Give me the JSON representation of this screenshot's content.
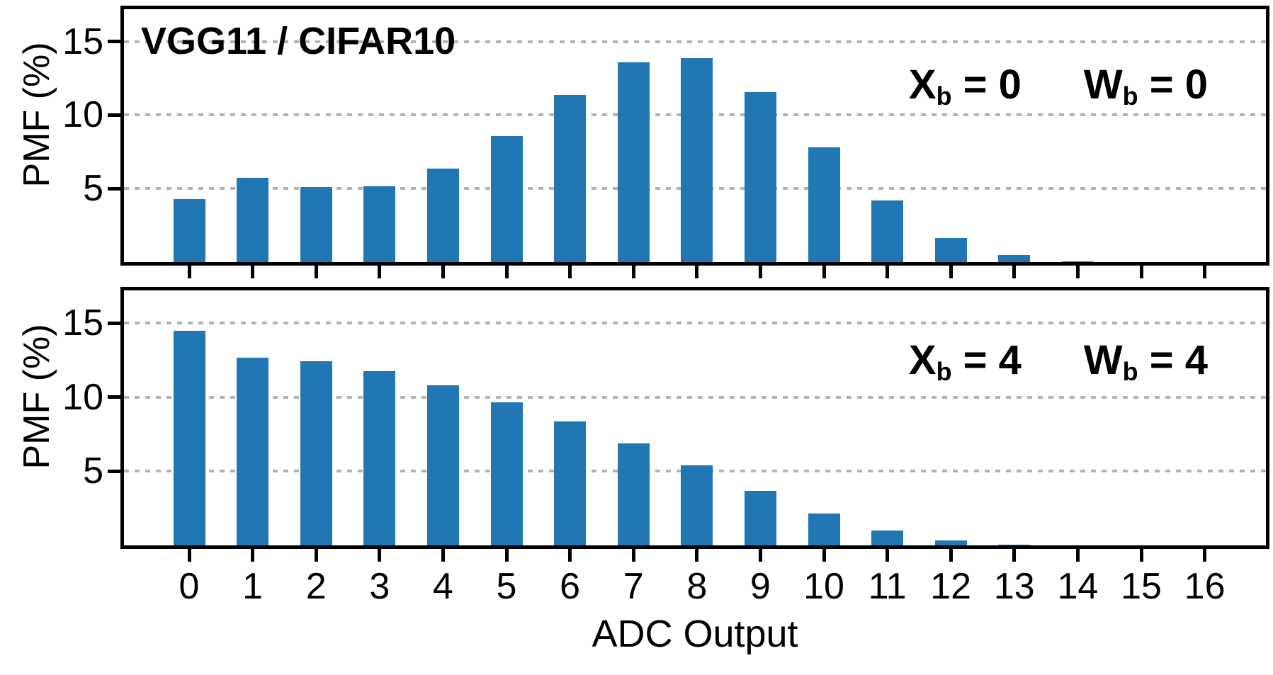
{
  "figure": {
    "kind": "two-panel bar chart",
    "bar_color": "#2077b4",
    "gridline_color": "#b3b3b3",
    "axis_color": "#000000"
  },
  "labels": {
    "ylabel": "PMF (%)",
    "xlabel": "ADC Output"
  },
  "chart_data": [
    {
      "type": "bar",
      "panel": "top",
      "title": "VGG11 / CIFAR10",
      "annotation": "Xb = 0   Wb = 0",
      "annotation_parts": {
        "var1": "X",
        "sub1": "b",
        "eq1": " = 0",
        "var2": "W",
        "sub2": "b",
        "eq2": " = 0"
      },
      "xlabel": "",
      "ylabel": "PMF (%)",
      "categories": [
        "0",
        "1",
        "2",
        "3",
        "4",
        "5",
        "6",
        "7",
        "8",
        "9",
        "10",
        "11",
        "12",
        "13",
        "14",
        "15",
        "16"
      ],
      "values": [
        4.3,
        5.75,
        5.1,
        5.15,
        6.35,
        8.6,
        11.35,
        13.6,
        13.9,
        11.55,
        7.8,
        4.2,
        1.65,
        0.5,
        0.05,
        0,
        0
      ],
      "yticks": [
        5,
        10,
        15
      ],
      "ylim": [
        0,
        17.2
      ],
      "grid": "dotted horizontal at yticks",
      "legend": "none"
    },
    {
      "type": "bar",
      "panel": "bottom",
      "title": "",
      "annotation": "Xb = 4   Wb = 4",
      "annotation_parts": {
        "var1": "X",
        "sub1": "b",
        "eq1": " = 4",
        "var2": "W",
        "sub2": "b",
        "eq2": " = 4"
      },
      "xlabel": "ADC Output",
      "ylabel": "PMF (%)",
      "categories": [
        "0",
        "1",
        "2",
        "3",
        "4",
        "5",
        "6",
        "7",
        "8",
        "9",
        "10",
        "11",
        "12",
        "13",
        "14",
        "15",
        "16"
      ],
      "values": [
        14.5,
        12.65,
        12.4,
        11.75,
        10.8,
        9.65,
        8.35,
        6.9,
        5.4,
        3.7,
        2.15,
        1.0,
        0.35,
        0.07,
        0,
        0,
        0
      ],
      "yticks": [
        5,
        10,
        15
      ],
      "ylim": [
        0,
        17.2
      ],
      "grid": "dotted horizontal at yticks",
      "legend": "none"
    }
  ]
}
